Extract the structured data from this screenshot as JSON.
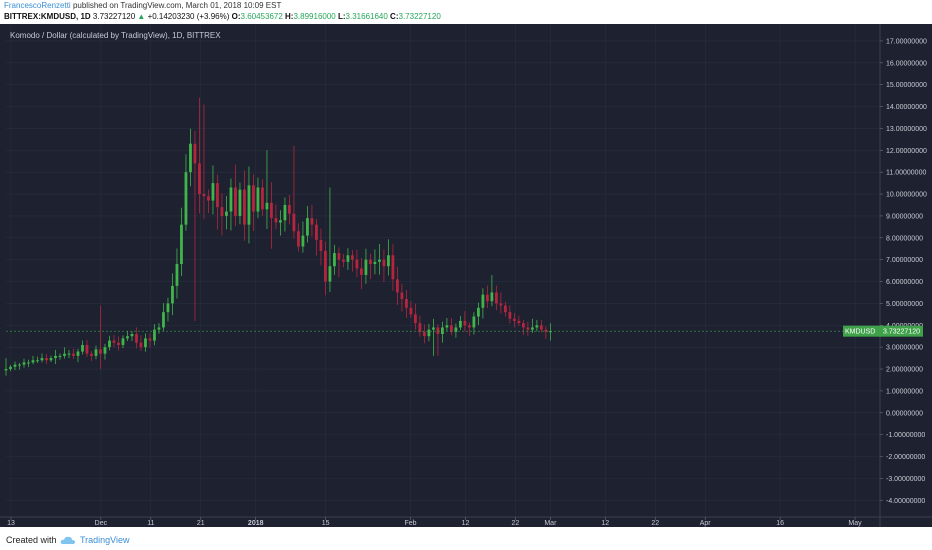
{
  "header": {
    "author": "FrancescoRenzetti",
    "published_text": "published on TradingView.com, March 01, 2018 10:09 EST",
    "symbol": "BITTREX:KMDUSD, 1D",
    "last": "3.73227120",
    "change": "+0.14203230 (+3.96%)",
    "o_label": "O:",
    "o_value": "3.60453672",
    "h_label": "H:",
    "h_value": "3.89916000",
    "l_label": "L:",
    "l_value": "3.31661640",
    "c_label": "C:",
    "c_value": "3.73227120"
  },
  "colors": {
    "background": "#1d2130",
    "grid": "#2a2f3f",
    "up": "#3fb54a",
    "down": "#b5263e",
    "axis_text": "#c8cbd3",
    "price_label_bg": "#3fa24a"
  },
  "chart_data": {
    "type": "candlestick",
    "title": "Komodo / Dollar (calculated by TradingView), 1D, BITTREX",
    "price_label": "KMDUSD",
    "last_price": "3.73227120",
    "last_value": 3.73,
    "ylim": [
      -4.4,
      17.5
    ],
    "yticks": [
      {
        "value": 17,
        "label": "17.00000000"
      },
      {
        "value": 16,
        "label": "16.00000000"
      },
      {
        "value": 15,
        "label": "15.00000000"
      },
      {
        "value": 14,
        "label": "14.00000000"
      },
      {
        "value": 13,
        "label": "13.00000000"
      },
      {
        "value": 12,
        "label": "12.00000000"
      },
      {
        "value": 11,
        "label": "11.00000000"
      },
      {
        "value": 10,
        "label": "10.00000000"
      },
      {
        "value": 9,
        "label": "9.00000000"
      },
      {
        "value": 8,
        "label": "8.00000000"
      },
      {
        "value": 7,
        "label": "7.00000000"
      },
      {
        "value": 6,
        "label": "6.00000000"
      },
      {
        "value": 5,
        "label": "5.00000000"
      },
      {
        "value": 4,
        "label": "4.00000000"
      },
      {
        "value": 3,
        "label": "3.00000000"
      },
      {
        "value": 2,
        "label": "2.00000000"
      },
      {
        "value": 1,
        "label": "1.00000000"
      },
      {
        "value": 0,
        "label": "0.00000000"
      },
      {
        "value": -1,
        "label": "-1.00000000"
      },
      {
        "value": -2,
        "label": "-2.00000000"
      },
      {
        "value": -3,
        "label": "-3.00000000"
      },
      {
        "value": -4,
        "label": "-4.00000000"
      }
    ],
    "xticks": [
      {
        "date": "2017-11-13",
        "label": "13",
        "bold": false
      },
      {
        "date": "2017-12-01",
        "label": "Dec",
        "bold": false
      },
      {
        "date": "2017-12-11",
        "label": "11",
        "bold": false
      },
      {
        "date": "2017-12-21",
        "label": "21",
        "bold": false
      },
      {
        "date": "2018-01-01",
        "label": "2018",
        "bold": true
      },
      {
        "date": "2018-01-15",
        "label": "15",
        "bold": false
      },
      {
        "date": "2018-02-01",
        "label": "Feb",
        "bold": false
      },
      {
        "date": "2018-02-12",
        "label": "12",
        "bold": false
      },
      {
        "date": "2018-02-22",
        "label": "22",
        "bold": false
      },
      {
        "date": "2018-03-01",
        "label": "Mar",
        "bold": false
      },
      {
        "date": "2018-03-12",
        "label": "12",
        "bold": false
      },
      {
        "date": "2018-03-22",
        "label": "22",
        "bold": false
      },
      {
        "date": "2018-04-01",
        "label": "Apr",
        "bold": false
      },
      {
        "date": "2018-04-16",
        "label": "16",
        "bold": false
      },
      {
        "date": "2018-05-01",
        "label": "May",
        "bold": false
      }
    ],
    "x_range": [
      "2017-11-12",
      "2018-05-06"
    ],
    "start_date": "2017-11-12",
    "close_path": [
      2.0,
      2.1,
      2.2,
      2.2,
      2.3,
      2.3,
      2.4,
      2.4,
      2.5,
      2.4,
      2.5,
      2.6,
      2.6,
      2.7,
      2.7,
      2.6,
      2.8,
      3.1,
      2.7,
      2.6,
      2.9,
      2.7,
      3.0,
      3.3,
      3.2,
      3.1,
      3.4,
      3.5,
      3.6,
      3.2,
      3.0,
      3.4,
      3.3,
      3.8,
      3.9,
      4.6,
      5.0,
      5.8,
      6.8,
      8.6,
      11.0,
      12.3,
      11.4,
      10.0,
      9.9,
      9.7,
      10.5,
      9.4,
      9.0,
      9.2,
      10.3,
      9.0,
      10.2,
      8.6,
      10.4,
      9.2,
      10.3,
      9.3,
      9.6,
      8.9,
      8.7,
      8.8,
      9.5,
      9.1,
      8.3,
      7.6,
      8.1,
      8.9,
      8.6,
      7.9,
      7.4,
      6.0,
      6.7,
      7.3,
      7.0,
      6.9,
      7.2,
      7.0,
      6.6,
      6.3,
      7.0,
      6.8,
      6.9,
      7.0,
      6.7,
      7.2,
      6.1,
      5.5,
      5.2,
      4.8,
      4.5,
      4.1,
      3.7,
      3.5,
      3.8,
      3.9,
      3.6,
      3.9,
      4.0,
      3.7,
      3.9,
      4.2,
      4.0,
      3.9,
      4.4,
      4.8,
      5.4,
      5.1,
      5.5,
      5.0,
      4.9,
      4.6,
      4.3,
      4.2,
      4.1,
      3.9,
      3.8,
      3.9,
      4.0,
      3.8,
      3.7,
      3.73
    ],
    "highs": [
      {
        "date": "2017-11-12",
        "value": 2.5
      },
      {
        "date": "2017-12-01",
        "value": 4.9
      },
      {
        "date": "2017-12-21",
        "value": 14.4
      },
      {
        "date": "2017-12-22",
        "value": 14.1
      },
      {
        "date": "2018-01-03",
        "value": 12.0
      },
      {
        "date": "2018-01-09",
        "value": 12.2
      },
      {
        "date": "2018-01-16",
        "value": 10.3
      },
      {
        "date": "2018-02-17",
        "value": 6.3
      },
      {
        "date": "2018-03-01",
        "value": 3.9
      }
    ],
    "lows": [
      {
        "date": "2017-11-12",
        "value": 1.7
      },
      {
        "date": "2017-12-01",
        "value": 2.0
      },
      {
        "date": "2017-12-20",
        "value": 4.2
      },
      {
        "date": "2018-01-04",
        "value": 7.5
      },
      {
        "date": "2018-01-11",
        "value": 8.0
      },
      {
        "date": "2018-01-18",
        "value": 6.2
      },
      {
        "date": "2018-02-06",
        "value": 2.6
      },
      {
        "date": "2018-02-13",
        "value": 3.5
      },
      {
        "date": "2018-03-01",
        "value": 3.3
      }
    ],
    "grid": true
  },
  "footer": {
    "created_with": "Created with",
    "brand": "TradingView"
  }
}
